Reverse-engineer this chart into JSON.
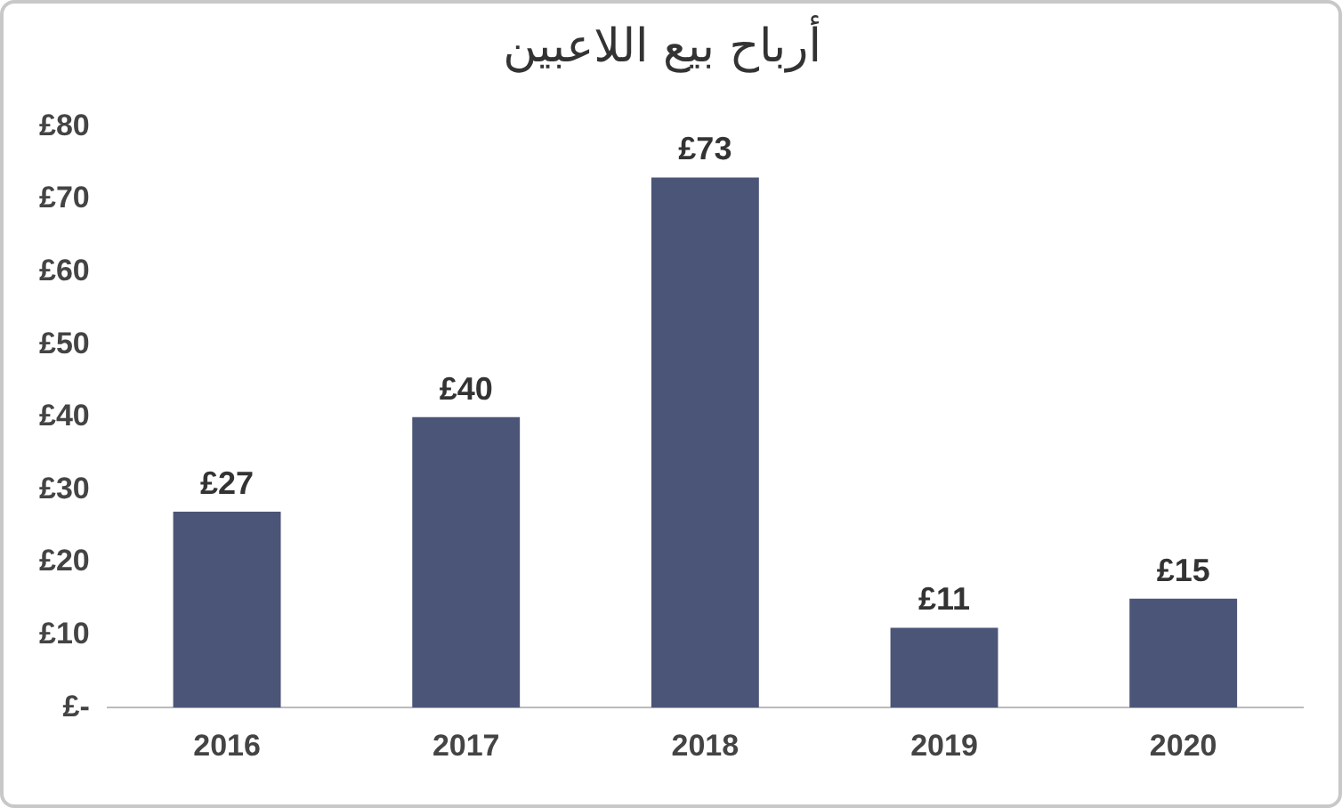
{
  "chart_data": {
    "type": "bar",
    "title": "أرباح بيع اللاعبين",
    "categories": [
      "2016",
      "2017",
      "2018",
      "2019",
      "2020"
    ],
    "values": [
      27,
      40,
      73,
      11,
      15
    ],
    "value_labels": [
      "£27",
      "£40",
      "£73",
      "£11",
      "£15"
    ],
    "color": "#4b5577",
    "ylim": [
      0,
      80
    ],
    "yticks": [
      {
        "value": 0,
        "label": "£-"
      },
      {
        "value": 10,
        "label": "£10"
      },
      {
        "value": 20,
        "label": "£20"
      },
      {
        "value": 30,
        "label": "£30"
      },
      {
        "value": 40,
        "label": "£40"
      },
      {
        "value": 50,
        "label": "£50"
      },
      {
        "value": 60,
        "label": "£60"
      },
      {
        "value": 70,
        "label": "£70"
      },
      {
        "value": 80,
        "label": "£80"
      }
    ],
    "grid": false,
    "legend": false
  }
}
